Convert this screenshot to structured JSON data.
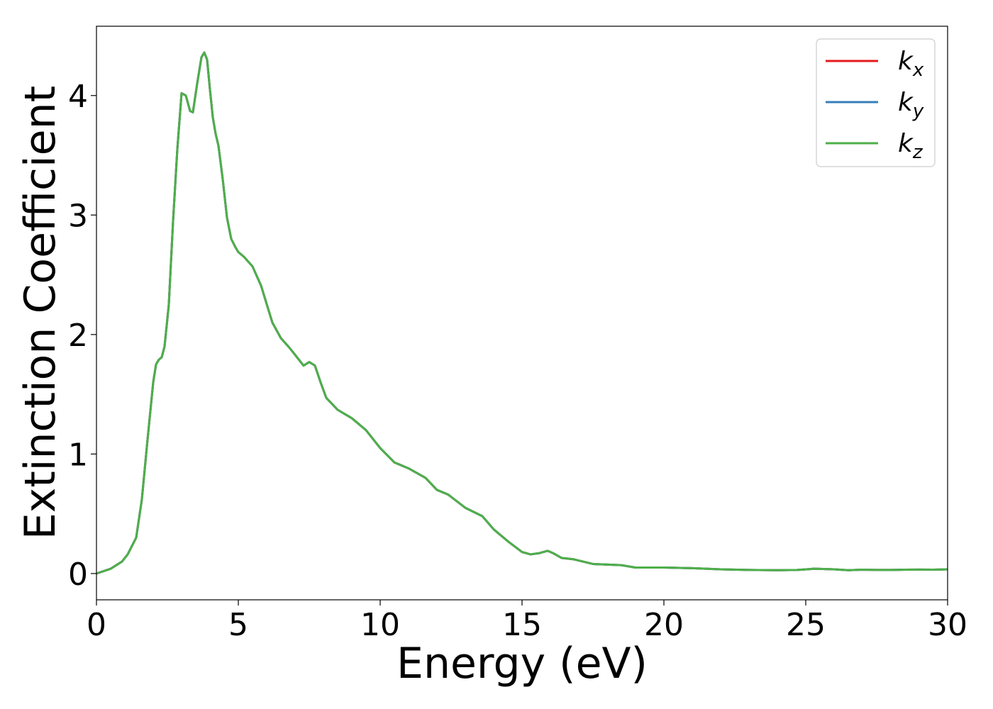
{
  "chart_data": {
    "type": "line",
    "xlabel": "Energy (eV)",
    "ylabel": "Extinction Coefficient",
    "xlim": [
      0,
      30
    ],
    "ylim": [
      -0.22,
      4.58
    ],
    "xticks": [
      0,
      5,
      10,
      15,
      20,
      25,
      30
    ],
    "yticks": [
      0,
      1,
      2,
      3,
      4
    ],
    "grid": false,
    "legend_position": "top-right",
    "series": [
      {
        "name": "k_x",
        "label_main": "k",
        "label_sub": "x",
        "color": "#e41a1c",
        "x": [
          0,
          0.5,
          0.9,
          1.1,
          1.4,
          1.6,
          1.8,
          2.0,
          2.1,
          2.2,
          2.3,
          2.4,
          2.55,
          2.7,
          2.85,
          3.0,
          3.15,
          3.3,
          3.4,
          3.55,
          3.7,
          3.8,
          3.9,
          4.0,
          4.1,
          4.2,
          4.3,
          4.45,
          4.6,
          4.75,
          4.9,
          5.0,
          5.2,
          5.5,
          5.8,
          6.2,
          6.5,
          6.8,
          7.0,
          7.3,
          7.5,
          7.7,
          7.9,
          8.1,
          8.3,
          8.5,
          9.0,
          9.5,
          10.0,
          10.5,
          11.0,
          11.6,
          12.0,
          12.4,
          13.0,
          13.6,
          14.0,
          14.5,
          15.0,
          15.3,
          15.6,
          15.9,
          16.1,
          16.4,
          16.8,
          17.5,
          18.5,
          19.0,
          20.0,
          21.0,
          22.0,
          23.0,
          24.0,
          24.7,
          25.3,
          26.0,
          26.5,
          27.0,
          27.5,
          28.0,
          28.5,
          29.0,
          29.5,
          30.0
        ],
        "y": [
          0.0,
          0.04,
          0.1,
          0.16,
          0.3,
          0.62,
          1.12,
          1.6,
          1.75,
          1.79,
          1.81,
          1.9,
          2.25,
          2.95,
          3.55,
          4.02,
          4.0,
          3.87,
          3.86,
          4.1,
          4.32,
          4.36,
          4.3,
          4.05,
          3.82,
          3.68,
          3.58,
          3.3,
          2.98,
          2.8,
          2.73,
          2.69,
          2.65,
          2.57,
          2.41,
          2.1,
          1.97,
          1.89,
          1.83,
          1.74,
          1.77,
          1.74,
          1.6,
          1.47,
          1.42,
          1.37,
          1.3,
          1.2,
          1.05,
          0.93,
          0.88,
          0.8,
          0.7,
          0.66,
          0.55,
          0.48,
          0.37,
          0.27,
          0.18,
          0.16,
          0.17,
          0.19,
          0.17,
          0.13,
          0.12,
          0.08,
          0.07,
          0.05,
          0.05,
          0.045,
          0.035,
          0.03,
          0.028,
          0.03,
          0.04,
          0.035,
          0.028,
          0.032,
          0.03,
          0.03,
          0.032,
          0.033,
          0.032,
          0.035
        ]
      },
      {
        "name": "k_y",
        "label_main": "k",
        "label_sub": "y",
        "color": "#377eb8",
        "x": [
          0,
          0.5,
          0.9,
          1.1,
          1.4,
          1.6,
          1.8,
          2.0,
          2.1,
          2.2,
          2.3,
          2.4,
          2.55,
          2.7,
          2.85,
          3.0,
          3.15,
          3.3,
          3.4,
          3.55,
          3.7,
          3.8,
          3.9,
          4.0,
          4.1,
          4.2,
          4.3,
          4.45,
          4.6,
          4.75,
          4.9,
          5.0,
          5.2,
          5.5,
          5.8,
          6.2,
          6.5,
          6.8,
          7.0,
          7.3,
          7.5,
          7.7,
          7.9,
          8.1,
          8.3,
          8.5,
          9.0,
          9.5,
          10.0,
          10.5,
          11.0,
          11.6,
          12.0,
          12.4,
          13.0,
          13.6,
          14.0,
          14.5,
          15.0,
          15.3,
          15.6,
          15.9,
          16.1,
          16.4,
          16.8,
          17.5,
          18.5,
          19.0,
          20.0,
          21.0,
          22.0,
          23.0,
          24.0,
          24.7,
          25.3,
          26.0,
          26.5,
          27.0,
          27.5,
          28.0,
          28.5,
          29.0,
          29.5,
          30.0
        ],
        "y": [
          0.0,
          0.04,
          0.1,
          0.16,
          0.3,
          0.62,
          1.12,
          1.6,
          1.75,
          1.79,
          1.81,
          1.9,
          2.25,
          2.95,
          3.55,
          4.02,
          4.0,
          3.87,
          3.86,
          4.1,
          4.32,
          4.36,
          4.3,
          4.05,
          3.82,
          3.68,
          3.58,
          3.3,
          2.98,
          2.8,
          2.73,
          2.69,
          2.65,
          2.57,
          2.41,
          2.1,
          1.97,
          1.89,
          1.83,
          1.74,
          1.77,
          1.74,
          1.6,
          1.47,
          1.42,
          1.37,
          1.3,
          1.2,
          1.05,
          0.93,
          0.88,
          0.8,
          0.7,
          0.66,
          0.55,
          0.48,
          0.37,
          0.27,
          0.18,
          0.16,
          0.17,
          0.19,
          0.17,
          0.13,
          0.12,
          0.08,
          0.07,
          0.05,
          0.05,
          0.045,
          0.035,
          0.03,
          0.028,
          0.03,
          0.04,
          0.035,
          0.028,
          0.032,
          0.03,
          0.03,
          0.032,
          0.033,
          0.032,
          0.035
        ]
      },
      {
        "name": "k_z",
        "label_main": "k",
        "label_sub": "z",
        "color": "#4daf4a",
        "x": [
          0,
          0.5,
          0.9,
          1.1,
          1.4,
          1.6,
          1.8,
          2.0,
          2.1,
          2.2,
          2.3,
          2.4,
          2.55,
          2.7,
          2.85,
          3.0,
          3.15,
          3.3,
          3.4,
          3.55,
          3.7,
          3.8,
          3.9,
          4.0,
          4.1,
          4.2,
          4.3,
          4.45,
          4.6,
          4.75,
          4.9,
          5.0,
          5.2,
          5.5,
          5.8,
          6.2,
          6.5,
          6.8,
          7.0,
          7.3,
          7.5,
          7.7,
          7.9,
          8.1,
          8.3,
          8.5,
          9.0,
          9.5,
          10.0,
          10.5,
          11.0,
          11.6,
          12.0,
          12.4,
          13.0,
          13.6,
          14.0,
          14.5,
          15.0,
          15.3,
          15.6,
          15.9,
          16.1,
          16.4,
          16.8,
          17.5,
          18.5,
          19.0,
          20.0,
          21.0,
          22.0,
          23.0,
          24.0,
          24.7,
          25.3,
          26.0,
          26.5,
          27.0,
          27.5,
          28.0,
          28.5,
          29.0,
          29.5,
          30.0
        ],
        "y": [
          0.0,
          0.04,
          0.1,
          0.16,
          0.3,
          0.62,
          1.12,
          1.6,
          1.75,
          1.79,
          1.81,
          1.9,
          2.25,
          2.95,
          3.55,
          4.02,
          4.0,
          3.87,
          3.86,
          4.1,
          4.32,
          4.36,
          4.3,
          4.05,
          3.82,
          3.68,
          3.58,
          3.3,
          2.98,
          2.8,
          2.73,
          2.69,
          2.65,
          2.57,
          2.41,
          2.1,
          1.97,
          1.89,
          1.83,
          1.74,
          1.77,
          1.74,
          1.6,
          1.47,
          1.42,
          1.37,
          1.3,
          1.2,
          1.05,
          0.93,
          0.88,
          0.8,
          0.7,
          0.66,
          0.55,
          0.48,
          0.37,
          0.27,
          0.18,
          0.16,
          0.17,
          0.19,
          0.17,
          0.13,
          0.12,
          0.08,
          0.07,
          0.05,
          0.05,
          0.045,
          0.035,
          0.03,
          0.028,
          0.03,
          0.04,
          0.035,
          0.028,
          0.032,
          0.03,
          0.03,
          0.032,
          0.033,
          0.032,
          0.035
        ]
      }
    ]
  }
}
